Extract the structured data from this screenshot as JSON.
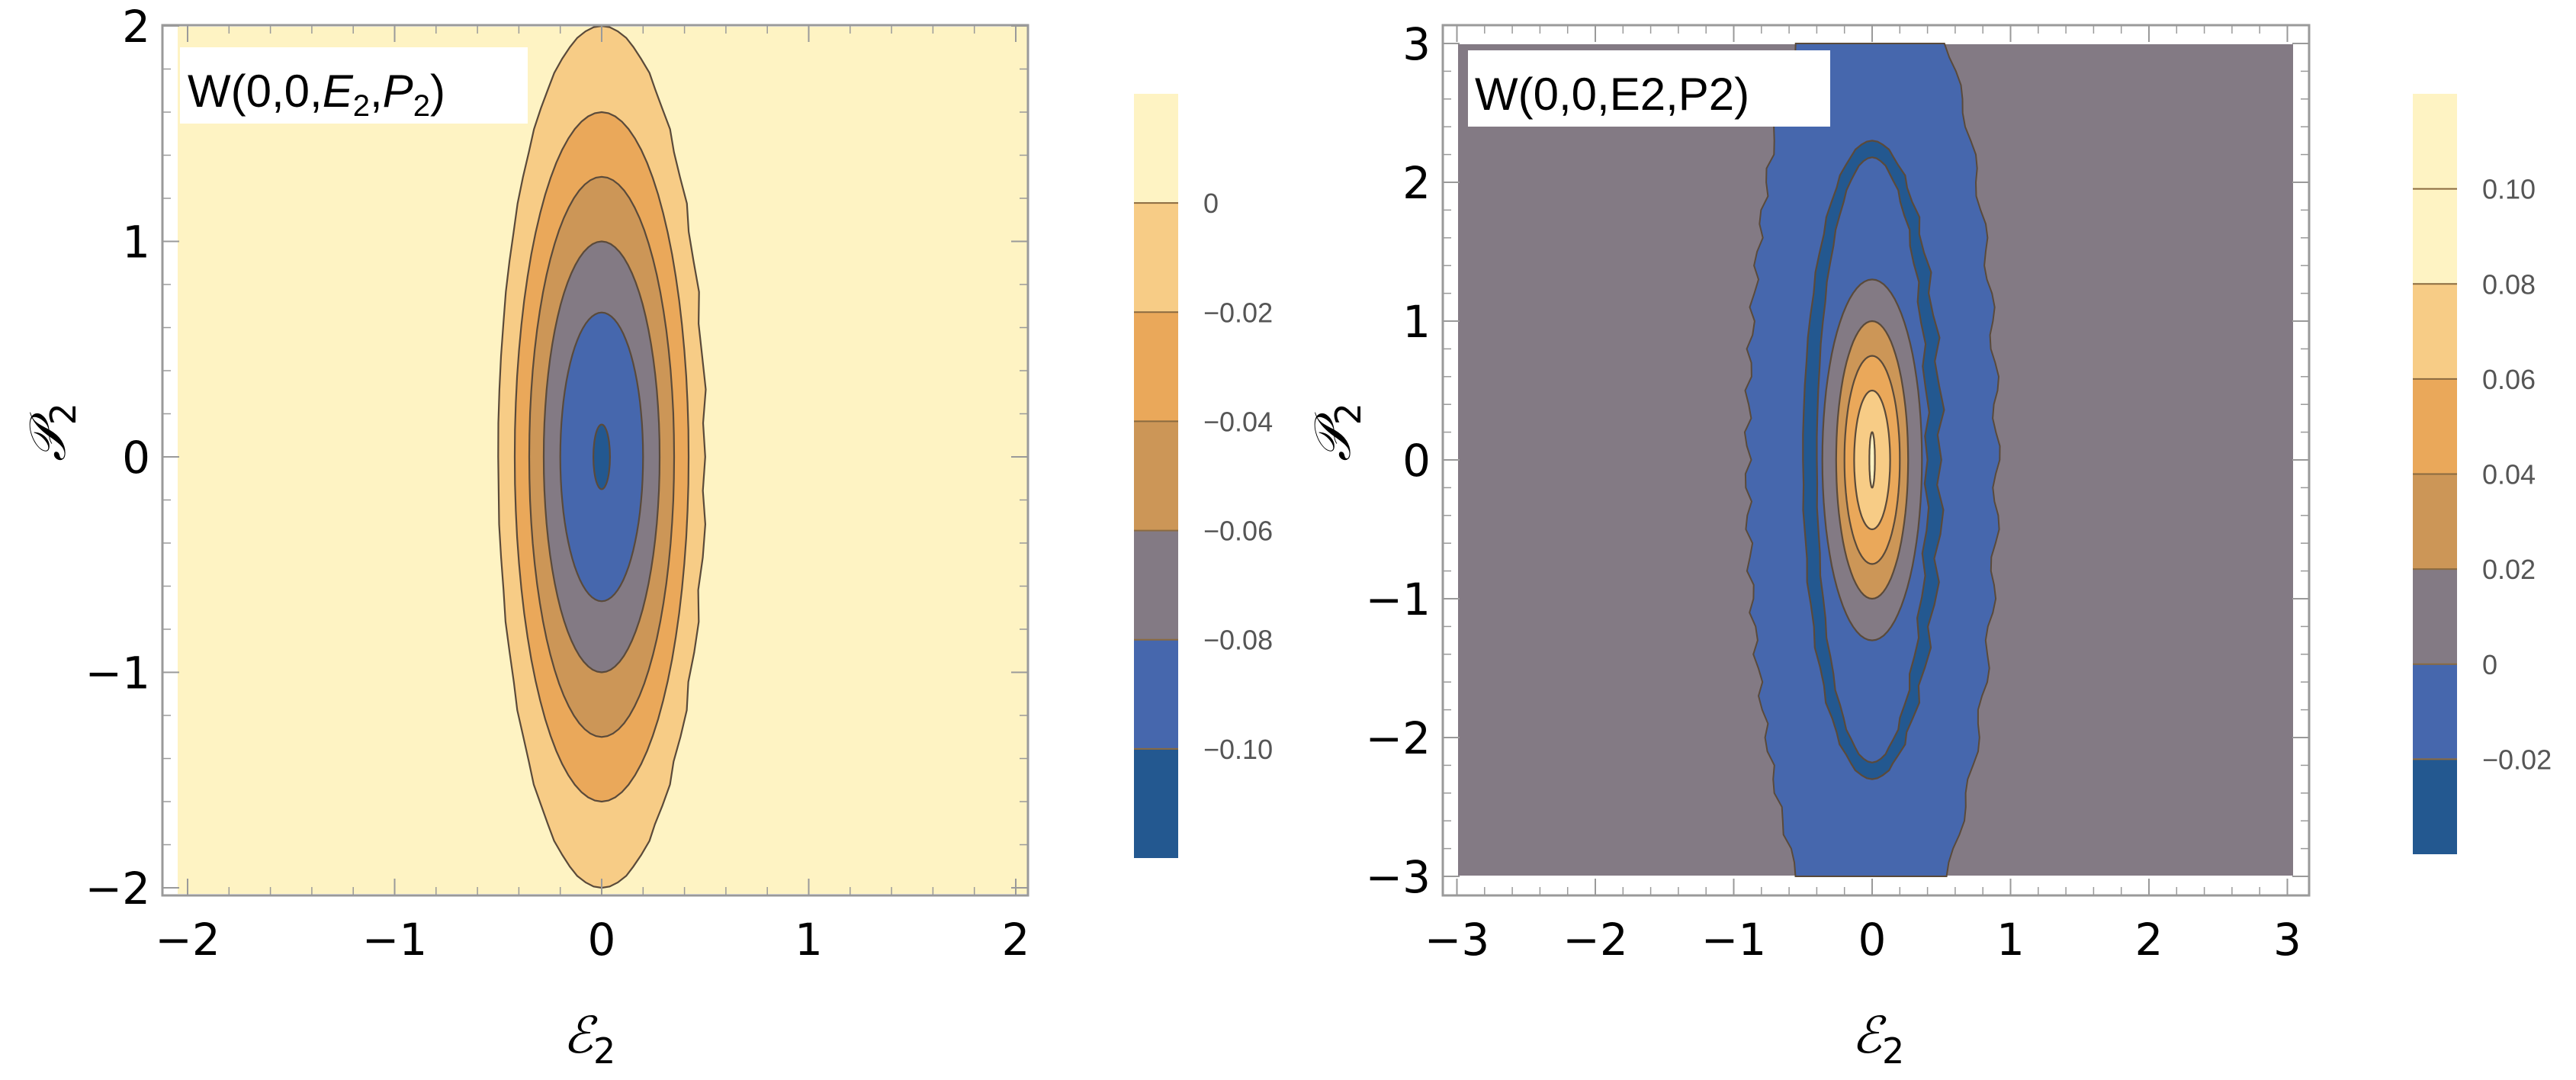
{
  "colors": {
    "band": [
      "#235890",
      "#4667ad",
      "#837a84",
      "#cc9657",
      "#eaa85a",
      "#f7cc86",
      "#fef3c3"
    ],
    "frame": "#9a9a9a",
    "contour_line": "#5a4a3a"
  },
  "chart_data": [
    {
      "type": "contour",
      "title": {
        "prefix": "W(0,0,",
        "v1": "E",
        "s1": "2",
        "sep": ",",
        "v2": "P",
        "s2": "2",
        "suffix": ")"
      },
      "xlabel": {
        "main": "ℰ",
        "sub": "2"
      },
      "ylabel": {
        "main": "𝒫",
        "sub": "2"
      },
      "xlim": [
        -2,
        2
      ],
      "ylim": [
        -2,
        2
      ],
      "xticks": [
        "−2",
        "−1",
        "0",
        "1",
        "2"
      ],
      "yticks": [
        "−2",
        "−1",
        "0",
        "1",
        "2"
      ],
      "xtick_values": [
        -2,
        -1,
        0,
        1,
        2
      ],
      "ytick_values": [
        -2,
        -1,
        0,
        1,
        2
      ],
      "contour_levels": [
        -0.1,
        -0.08,
        -0.06,
        -0.04,
        -0.02,
        0
      ],
      "colorbar_ticks": [
        "0",
        "−0.02",
        "−0.04",
        "−0.06",
        "−0.08",
        "−0.10"
      ],
      "colorbar_tick_values": [
        0,
        -0.02,
        -0.04,
        -0.06,
        -0.08,
        -0.1
      ],
      "colorbar_range": [
        -0.12,
        0.02
      ],
      "contour_extents": [
        {
          "level": 0,
          "x_halfwidth": 0.5,
          "y_halfwidth": 2.0
        },
        {
          "level": -0.02,
          "x_halfwidth": 0.42,
          "y_halfwidth": 1.6
        },
        {
          "level": -0.04,
          "x_halfwidth": 0.35,
          "y_halfwidth": 1.3
        },
        {
          "level": -0.06,
          "x_halfwidth": 0.28,
          "y_halfwidth": 1.0
        },
        {
          "level": -0.08,
          "x_halfwidth": 0.2,
          "y_halfwidth": 0.67
        },
        {
          "level": -0.1,
          "x_halfwidth": 0.04,
          "y_halfwidth": 0.15
        }
      ]
    },
    {
      "type": "contour",
      "title": {
        "text": "W(0,0,E2,P2)"
      },
      "xlabel": {
        "main": "ℰ",
        "sub": "2"
      },
      "ylabel": {
        "main": "𝒫",
        "sub": "2"
      },
      "xlim": [
        -3,
        3
      ],
      "ylim": [
        -3,
        3
      ],
      "xticks": [
        "−3",
        "−2",
        "−1",
        "0",
        "1",
        "2",
        "3"
      ],
      "yticks": [
        "−3",
        "−2",
        "−1",
        "0",
        "1",
        "2",
        "3"
      ],
      "xtick_values": [
        -3,
        -2,
        -1,
        0,
        1,
        2,
        3
      ],
      "ytick_values": [
        -3,
        -2,
        -1,
        0,
        1,
        2,
        3
      ],
      "contour_levels": [
        -0.02,
        0,
        0.02,
        0.04,
        0.06,
        0.08,
        0.1
      ],
      "colorbar_ticks": [
        "0.10",
        "0.08",
        "0.06",
        "0.04",
        "0.02",
        "0",
        "−0.02"
      ],
      "colorbar_tick_values": [
        0.1,
        0.08,
        0.06,
        0.04,
        0.02,
        0,
        -0.02
      ],
      "colorbar_range": [
        -0.04,
        0.12
      ],
      "contour_extents": [
        {
          "level": 0,
          "x_halfwidth": 0.9,
          "y_halfwidth": 3.0
        },
        {
          "level": -0.02,
          "x_halfwidth": 0.5,
          "y_halfwidth": 2.3,
          "ring_width": 0.1
        },
        {
          "level": 0.02,
          "x_halfwidth": 0.36,
          "y_halfwidth": 1.3
        },
        {
          "level": 0.04,
          "x_halfwidth": 0.26,
          "y_halfwidth": 1.0
        },
        {
          "level": 0.06,
          "x_halfwidth": 0.2,
          "y_halfwidth": 0.75
        },
        {
          "level": 0.08,
          "x_halfwidth": 0.13,
          "y_halfwidth": 0.5
        },
        {
          "level": 0.1,
          "x_halfwidth": 0.02,
          "y_halfwidth": 0.2
        }
      ]
    }
  ]
}
